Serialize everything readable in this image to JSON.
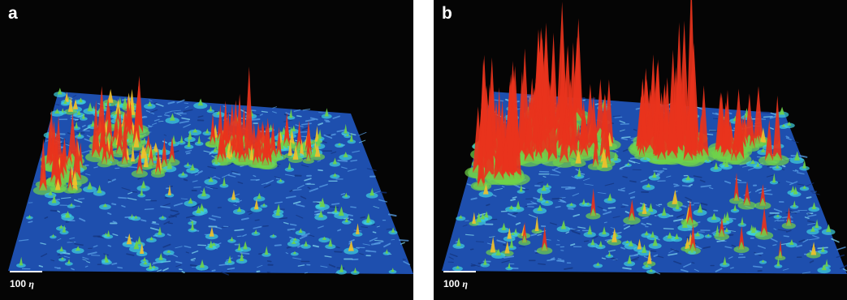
{
  "panels": [
    {
      "label": "a",
      "scale_value": "100",
      "scale_symbol": "η"
    },
    {
      "label": "b",
      "scale_value": "100",
      "scale_symbol": "η"
    }
  ],
  "colors": {
    "background": "#050505",
    "surface_blue": "#1e4fae",
    "mid_cyan": "#3fd2e0",
    "mid_green": "#6fd34a",
    "peak_red": "#e8331c",
    "scale_text": "#ffffff"
  }
}
